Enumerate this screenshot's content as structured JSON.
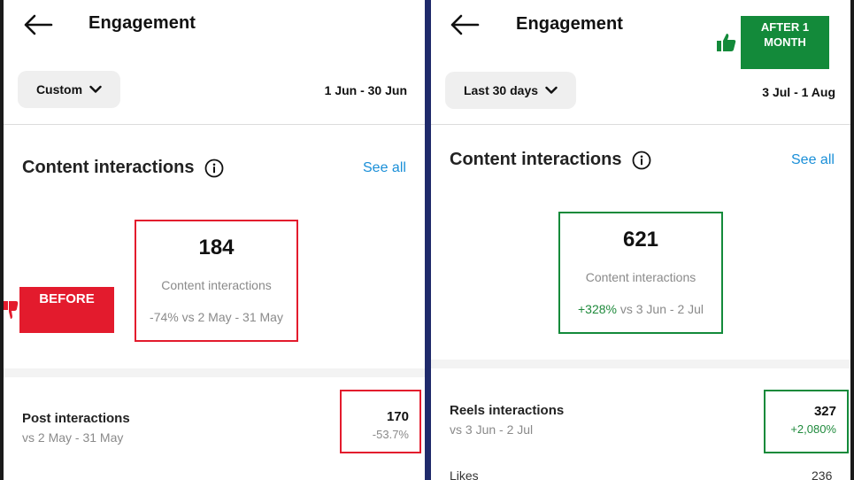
{
  "colors": {
    "before_red": "#e31b2d",
    "after_green": "#138a3a",
    "link_blue": "#1a8fd8",
    "positive_green": "#1f8a3c"
  },
  "before": {
    "header": {
      "title": "Engagement",
      "back_icon": "arrow-left-icon"
    },
    "range": {
      "label": "Custom",
      "date": "1 Jun - 30 Jun"
    },
    "section": {
      "title": "Content interactions",
      "see_all": "See all",
      "info_icon": "info-icon"
    },
    "stat": {
      "value": "184",
      "label": "Content interactions",
      "comparison": "-74% vs 2 May - 31 May"
    },
    "badge": {
      "text": "BEFORE",
      "icon": "thumbs-down-icon"
    },
    "row": {
      "title": "Post interactions",
      "subtitle": "vs 2 May - 31 May",
      "value": "170",
      "change": "-53.7%"
    }
  },
  "after": {
    "header": {
      "title": "Engagement",
      "back_icon": "arrow-left-icon"
    },
    "range": {
      "label": "Last 30 days",
      "date": "3 Jul - 1 Aug"
    },
    "section": {
      "title": "Content interactions",
      "see_all": "See all",
      "info_icon": "info-icon"
    },
    "stat": {
      "value": "621",
      "label": "Content interactions",
      "change": "+328%",
      "comparison": "vs 3 Jun - 2 Jul"
    },
    "badge": {
      "line1": "AFTER 1",
      "line2": "MONTH",
      "icon": "thumbs-up-icon"
    },
    "row": {
      "title": "Reels interactions",
      "subtitle": "vs 3 Jun - 2 Jul",
      "value": "327",
      "change": "+2,080%"
    },
    "likes": {
      "label": "Likes",
      "value": "236"
    }
  }
}
